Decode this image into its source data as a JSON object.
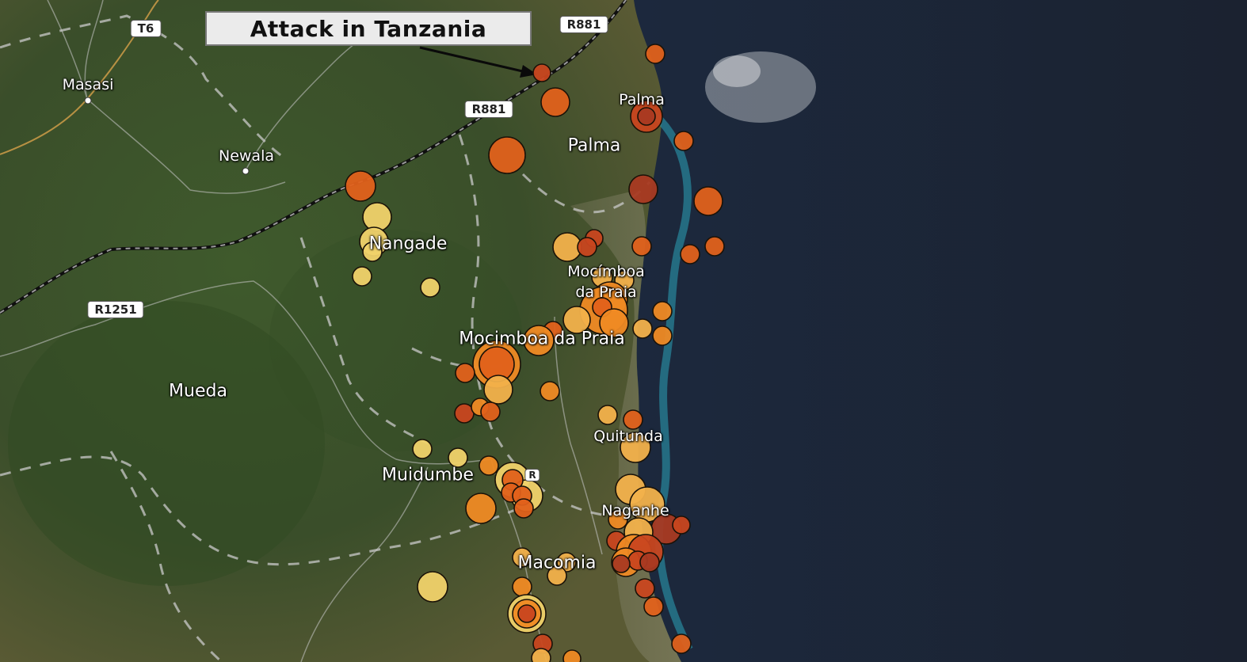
{
  "map": {
    "places": [
      {
        "id": "masasi",
        "name": "Masasi",
        "kind": "town"
      },
      {
        "id": "newala",
        "name": "Newala",
        "kind": "town"
      },
      {
        "id": "palma-1",
        "name": "Palma",
        "kind": "small"
      },
      {
        "id": "palma-2",
        "name": "Palma",
        "kind": "district"
      },
      {
        "id": "nangade",
        "name": "Nangade",
        "kind": "district"
      },
      {
        "id": "mocimboa-town",
        "name": "Mocímboa da Praia",
        "kind": "small"
      },
      {
        "id": "mocimboa-district",
        "name": "Mocimboa da Praia",
        "kind": "district"
      },
      {
        "id": "mueda",
        "name": "Mueda",
        "kind": "district"
      },
      {
        "id": "quitunda",
        "name": "Quitunda",
        "kind": "small"
      },
      {
        "id": "muidumbe",
        "name": "Muidumbe",
        "kind": "district"
      },
      {
        "id": "nangade-south",
        "name": "Naganhe",
        "kind": "small"
      },
      {
        "id": "macomia",
        "name": "Macomia",
        "kind": "district"
      }
    ],
    "road_shields": [
      {
        "id": "t6",
        "label": "T6"
      },
      {
        "id": "r881-a",
        "label": "R881"
      },
      {
        "id": "r881-b",
        "label": "R881"
      },
      {
        "id": "r1251",
        "label": "R1251"
      },
      {
        "id": "muidumbe-shield",
        "label": "R"
      }
    ],
    "annotation": {
      "label": "Attack in Tanzania"
    },
    "marker_palette": [
      "#f0d26a",
      "#f2b14b",
      "#ef8a24",
      "#e0611b",
      "#c8461f",
      "#a93a22"
    ],
    "markers_count_note": "Incidents shown as proportional circles"
  },
  "colors": {
    "ocean": "#1b2433",
    "land": "#3b4a2c",
    "coast_reef": "#2b8fa3",
    "border": "#111111",
    "roads": "#b8b8b8"
  }
}
